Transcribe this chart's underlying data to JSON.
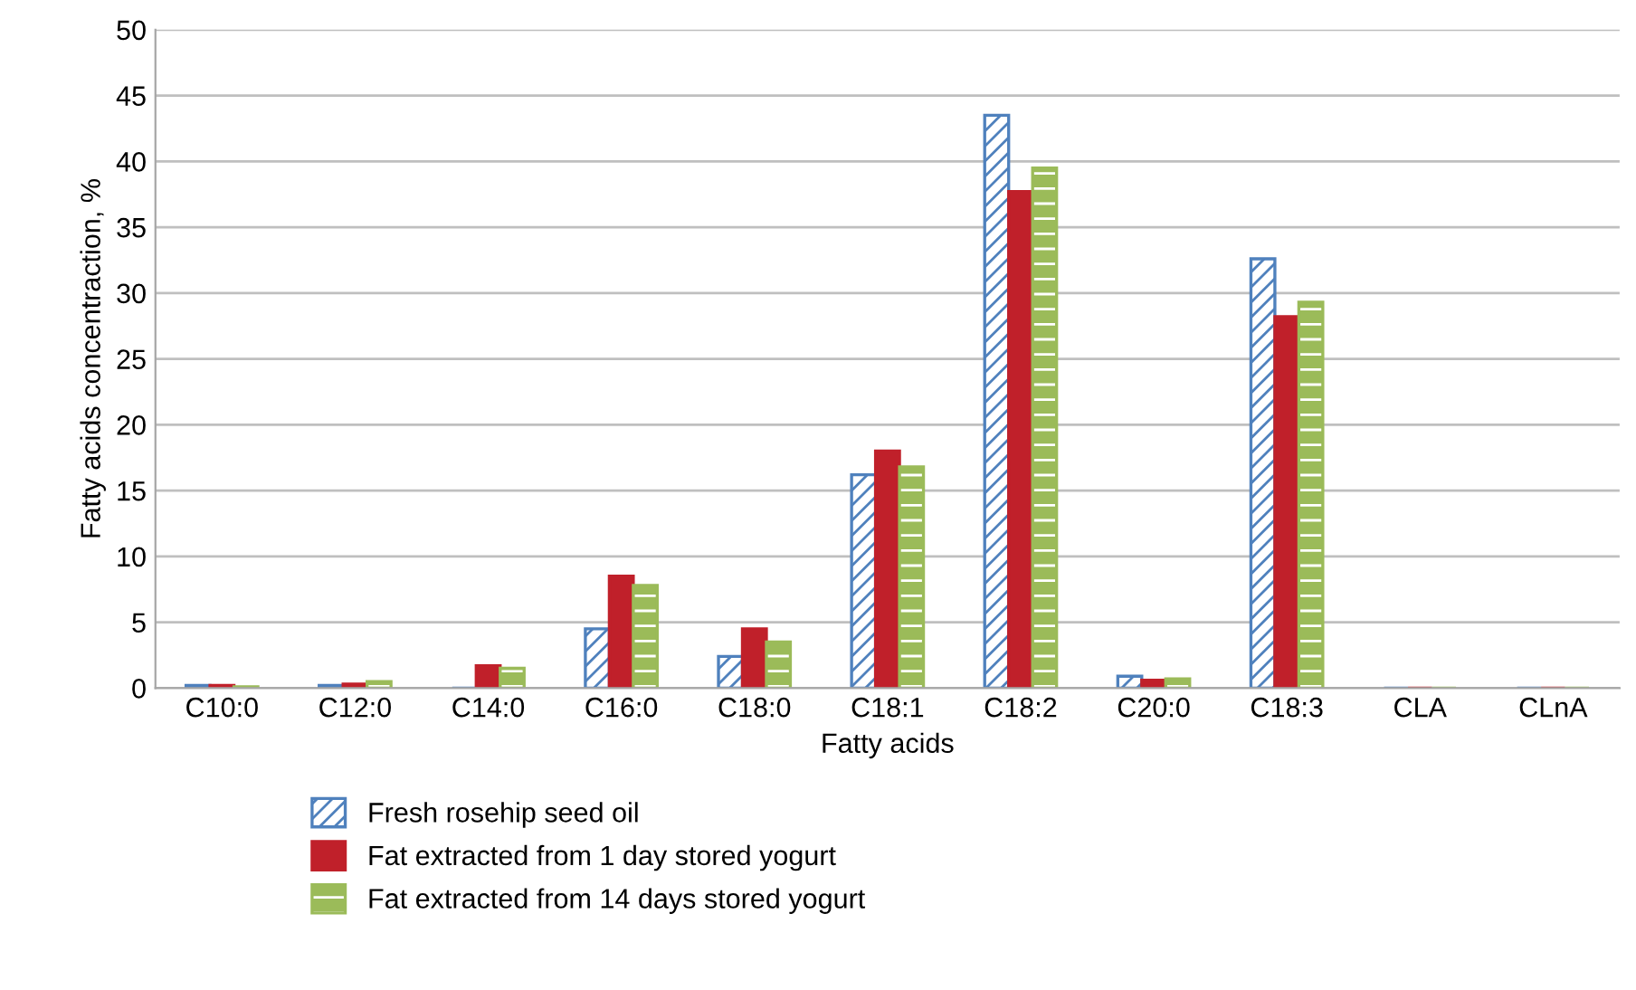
{
  "chart_data": {
    "type": "bar",
    "xlabel": "Fatty acids",
    "ylabel": "Fatty acids concentraction, %",
    "categories": [
      "C10:0",
      "C12:0",
      "C14:0",
      "C16:0",
      "C18:0",
      "C18:1",
      "C18:2",
      "C20:0",
      "C18:3",
      "CLA",
      "CLnA"
    ],
    "series": [
      {
        "name": "Fresh rosehip seed oil",
        "color": "#4f81bd",
        "values": [
          0.2,
          0.2,
          0,
          4.5,
          2.4,
          16.2,
          43.5,
          0.9,
          32.6,
          0,
          0
        ]
      },
      {
        "name": "Fat extracted from 1 day stored yogurt",
        "color": "#c0202a",
        "values": [
          0.2,
          0.3,
          1.7,
          8.5,
          4.5,
          18.0,
          37.7,
          0.6,
          28.2,
          0,
          0
        ]
      },
      {
        "name": "Fat extracted from 14 days stored yogurt",
        "color": "#9bbb59",
        "values": [
          0.1,
          0.5,
          1.5,
          7.8,
          3.5,
          16.8,
          39.5,
          0.7,
          29.3,
          0,
          0
        ]
      }
    ],
    "ylim": [
      0,
      50
    ],
    "yticks": [
      0,
      5,
      10,
      15,
      20,
      25,
      30,
      35,
      40,
      45,
      50
    ],
    "grid": "y",
    "legend": "bottom"
  }
}
